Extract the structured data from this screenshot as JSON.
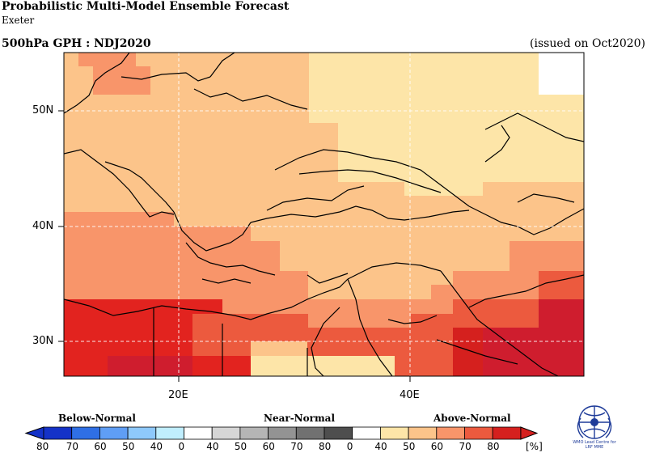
{
  "header": {
    "title": "Probabilistic Multi-Model Ensemble Forecast",
    "subtitle": "Exeter",
    "field_label": "500hPa GPH : NDJ2020",
    "issued_label": "(issued on Oct2020)"
  },
  "map": {
    "region": "Europe / Middle East",
    "lat_labels": [
      "50N",
      "40N",
      "30N"
    ],
    "lon_labels": [
      "20E",
      "40E"
    ],
    "gridlines": "dashed white"
  },
  "legend": {
    "categories": [
      "Below-Normal",
      "Near-Normal",
      "Above-Normal"
    ],
    "left_tick": "80",
    "tick_labels": [
      "70",
      "60",
      "50",
      "40",
      "0",
      "40",
      "50",
      "60",
      "70",
      "80",
      "0",
      "40",
      "50",
      "60",
      "70",
      "80"
    ],
    "unit": "[%]",
    "below_colors": [
      "#1432c8",
      "#2f6fe5",
      "#5f9ef5",
      "#8ec9fb",
      "#c0eefd"
    ],
    "near_colors": [
      "#ffffff",
      "#d6d6d6",
      "#b5b5b5",
      "#939393",
      "#717171",
      "#4e4e4e"
    ],
    "above_colors": [
      "#ffffff",
      "#fde5a8",
      "#fcc48a",
      "#f8956a",
      "#ec5a3e",
      "#d5201e"
    ]
  },
  "logo": {
    "line1": "WMO Lead Centre for",
    "line2": "LRF MME"
  }
}
